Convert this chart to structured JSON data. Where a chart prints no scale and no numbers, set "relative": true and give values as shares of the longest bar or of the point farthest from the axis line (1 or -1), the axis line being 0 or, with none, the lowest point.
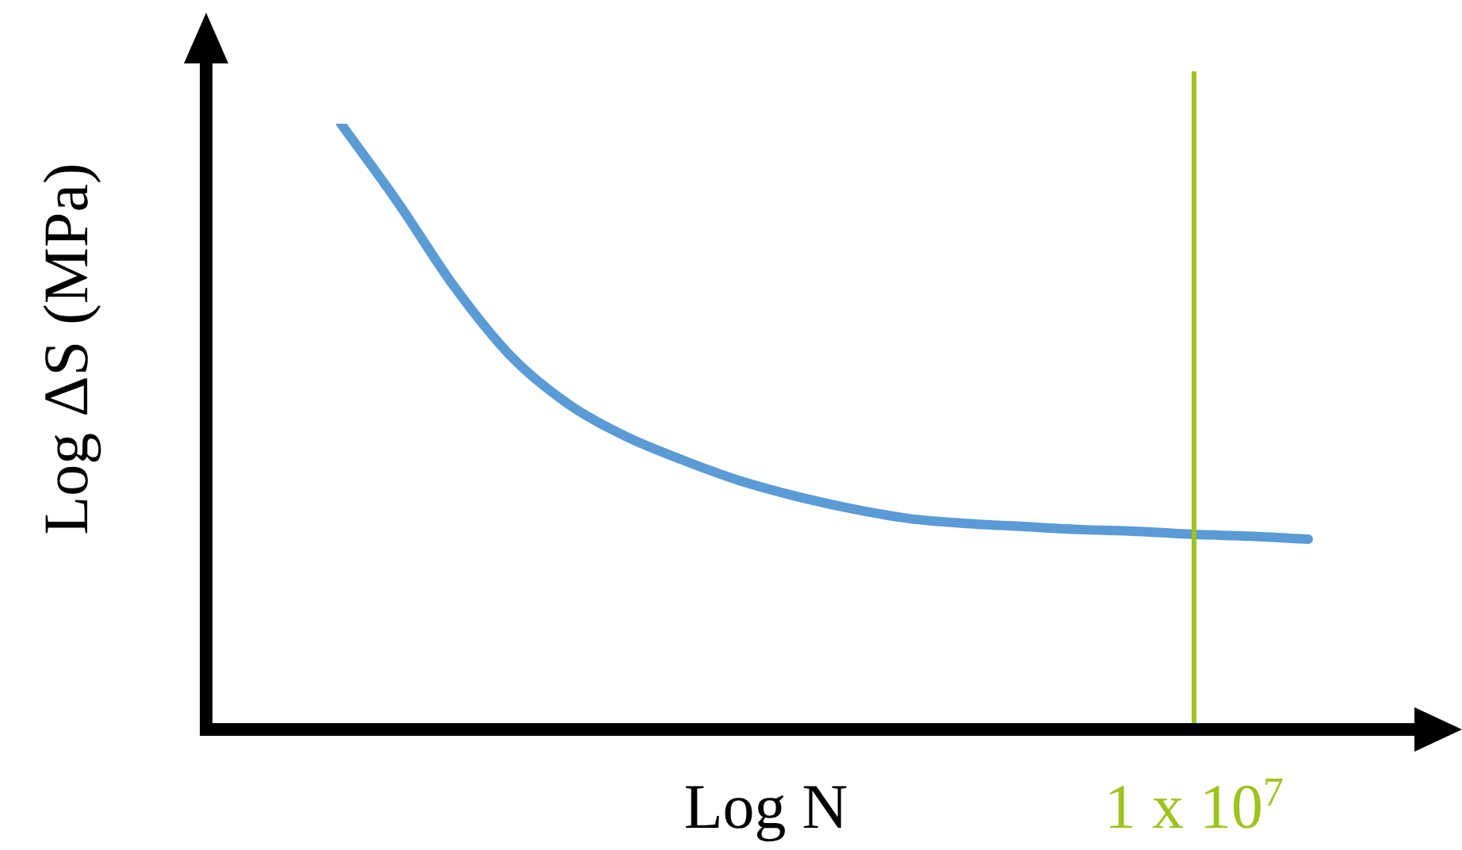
{
  "chart_data": {
    "type": "line",
    "relative": true,
    "xlabel": "Log N",
    "ylabel": "Log ΔS (MPa)",
    "categories": [
      null,
      null,
      null,
      null,
      null,
      null,
      null,
      null,
      null,
      null,
      null,
      null,
      null,
      null,
      null,
      null,
      null,
      null
    ],
    "series": [
      {
        "color": "#5b9bd5",
        "values": [
          1.0,
          0.87,
          0.73,
          0.615,
          0.537,
          0.484,
          0.445,
          0.411,
          0.385,
          0.364,
          0.348,
          0.34,
          0.335,
          0.33,
          0.327,
          0.322,
          0.319,
          0.314
        ]
      }
    ],
    "annotations": [
      "1 x 10$^{7}$"
    ],
    "legend": false,
    "marker": "none",
    "line_style": "solid"
  }
}
